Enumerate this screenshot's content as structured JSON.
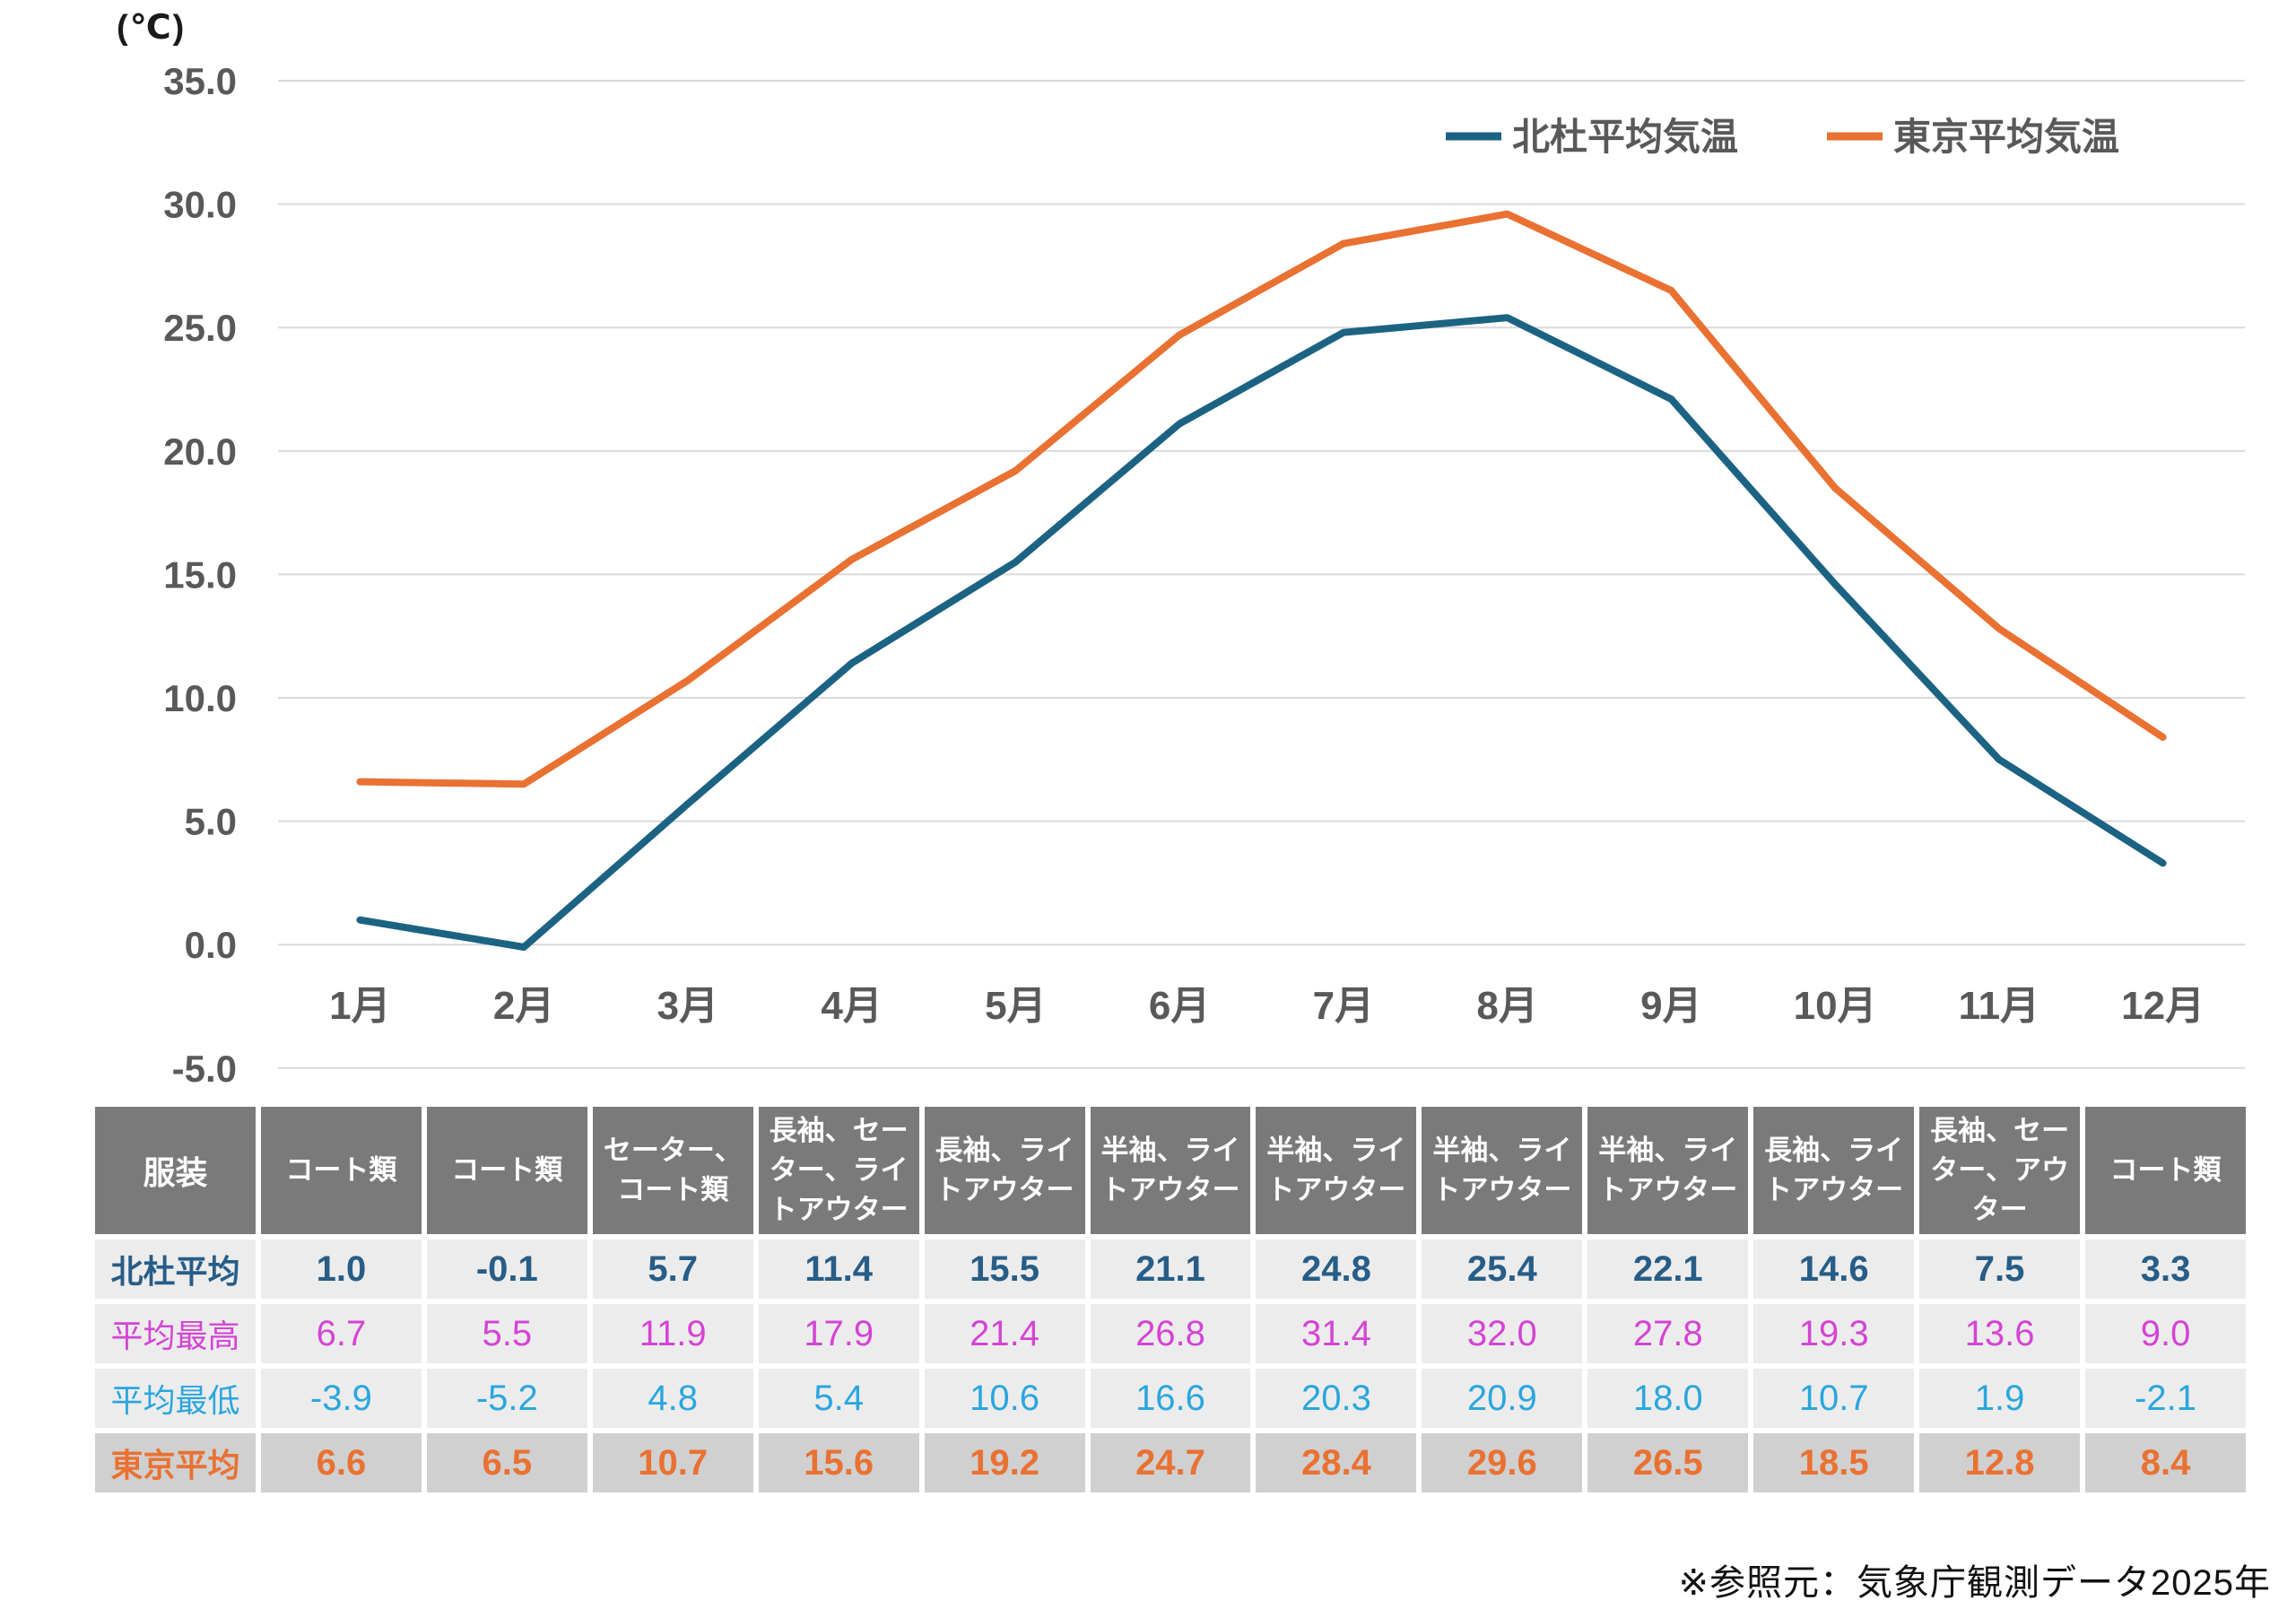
{
  "chart": {
    "unit_label": "(℃)",
    "legend": [
      {
        "label": "北杜平均気温",
        "color": "#1c6383"
      },
      {
        "label": "東京平均気温",
        "color": "#e97132"
      }
    ],
    "colors": {
      "grid": "#d9d9d9",
      "axis_text": "#595959",
      "hokuto_line": "#1c6383",
      "tokyo_line": "#e97132"
    }
  },
  "chart_data": {
    "type": "line",
    "title": "",
    "ylabel": "(℃)",
    "categories": [
      "1月",
      "2月",
      "3月",
      "4月",
      "5月",
      "6月",
      "7月",
      "8月",
      "9月",
      "10月",
      "11月",
      "12月"
    ],
    "series": [
      {
        "name": "北杜平均気温",
        "color": "#1c6383",
        "values": [
          1.0,
          -0.1,
          5.7,
          11.4,
          15.5,
          21.1,
          24.8,
          25.4,
          22.1,
          14.6,
          7.5,
          3.3
        ]
      },
      {
        "name": "東京平均気温",
        "color": "#e97132",
        "values": [
          6.6,
          6.5,
          10.7,
          15.6,
          19.2,
          24.7,
          28.4,
          29.6,
          26.5,
          18.5,
          12.8,
          8.4
        ]
      }
    ],
    "ylim": [
      -5.0,
      35.0
    ],
    "ytick_step": 5.0,
    "ytick_labels": [
      "35.0",
      "30.0",
      "25.0",
      "20.0",
      "15.0",
      "10.0",
      "5.0",
      "0.0",
      "-5.0"
    ],
    "grid": true,
    "legend_position": "top-right"
  },
  "table": {
    "header": {
      "corner_label": "服装",
      "clothing": [
        "コート類",
        "コート類",
        "セーター、コート類",
        "長袖、セーター、ライトアウター",
        "長袖、ライトアウター",
        "半袖、ライトアウター",
        "半袖、ライトアウター",
        "半袖、ライトアウター",
        "半袖、ライトアウター",
        "長袖、ライトアウター",
        "長袖、セーター、アウター",
        "コート類"
      ]
    },
    "rows": [
      {
        "key": "hokuto-avg",
        "style": "r-hokuto",
        "label": "北杜平均",
        "values": [
          "1.0",
          "-0.1",
          "5.7",
          "11.4",
          "15.5",
          "21.1",
          "24.8",
          "25.4",
          "22.1",
          "14.6",
          "7.5",
          "3.3"
        ]
      },
      {
        "key": "avg-max",
        "style": "r-max",
        "label": "平均最高",
        "values": [
          "6.7",
          "5.5",
          "11.9",
          "17.9",
          "21.4",
          "26.8",
          "31.4",
          "32.0",
          "27.8",
          "19.3",
          "13.6",
          "9.0"
        ]
      },
      {
        "key": "avg-min",
        "style": "r-min",
        "label": "平均最低",
        "values": [
          "-3.9",
          "-5.2",
          "4.8",
          "5.4",
          "10.6",
          "16.6",
          "20.3",
          "20.9",
          "18.0",
          "10.7",
          "1.9",
          "-2.1"
        ]
      },
      {
        "key": "tokyo-avg",
        "style": "r-tokyo",
        "label": "東京平均",
        "values": [
          "6.6",
          "6.5",
          "10.7",
          "15.6",
          "19.2",
          "24.7",
          "28.4",
          "29.6",
          "26.5",
          "18.5",
          "12.8",
          "8.4"
        ]
      }
    ]
  },
  "footer": {
    "source_note": "※参照元：気象庁観測データ2025年"
  }
}
